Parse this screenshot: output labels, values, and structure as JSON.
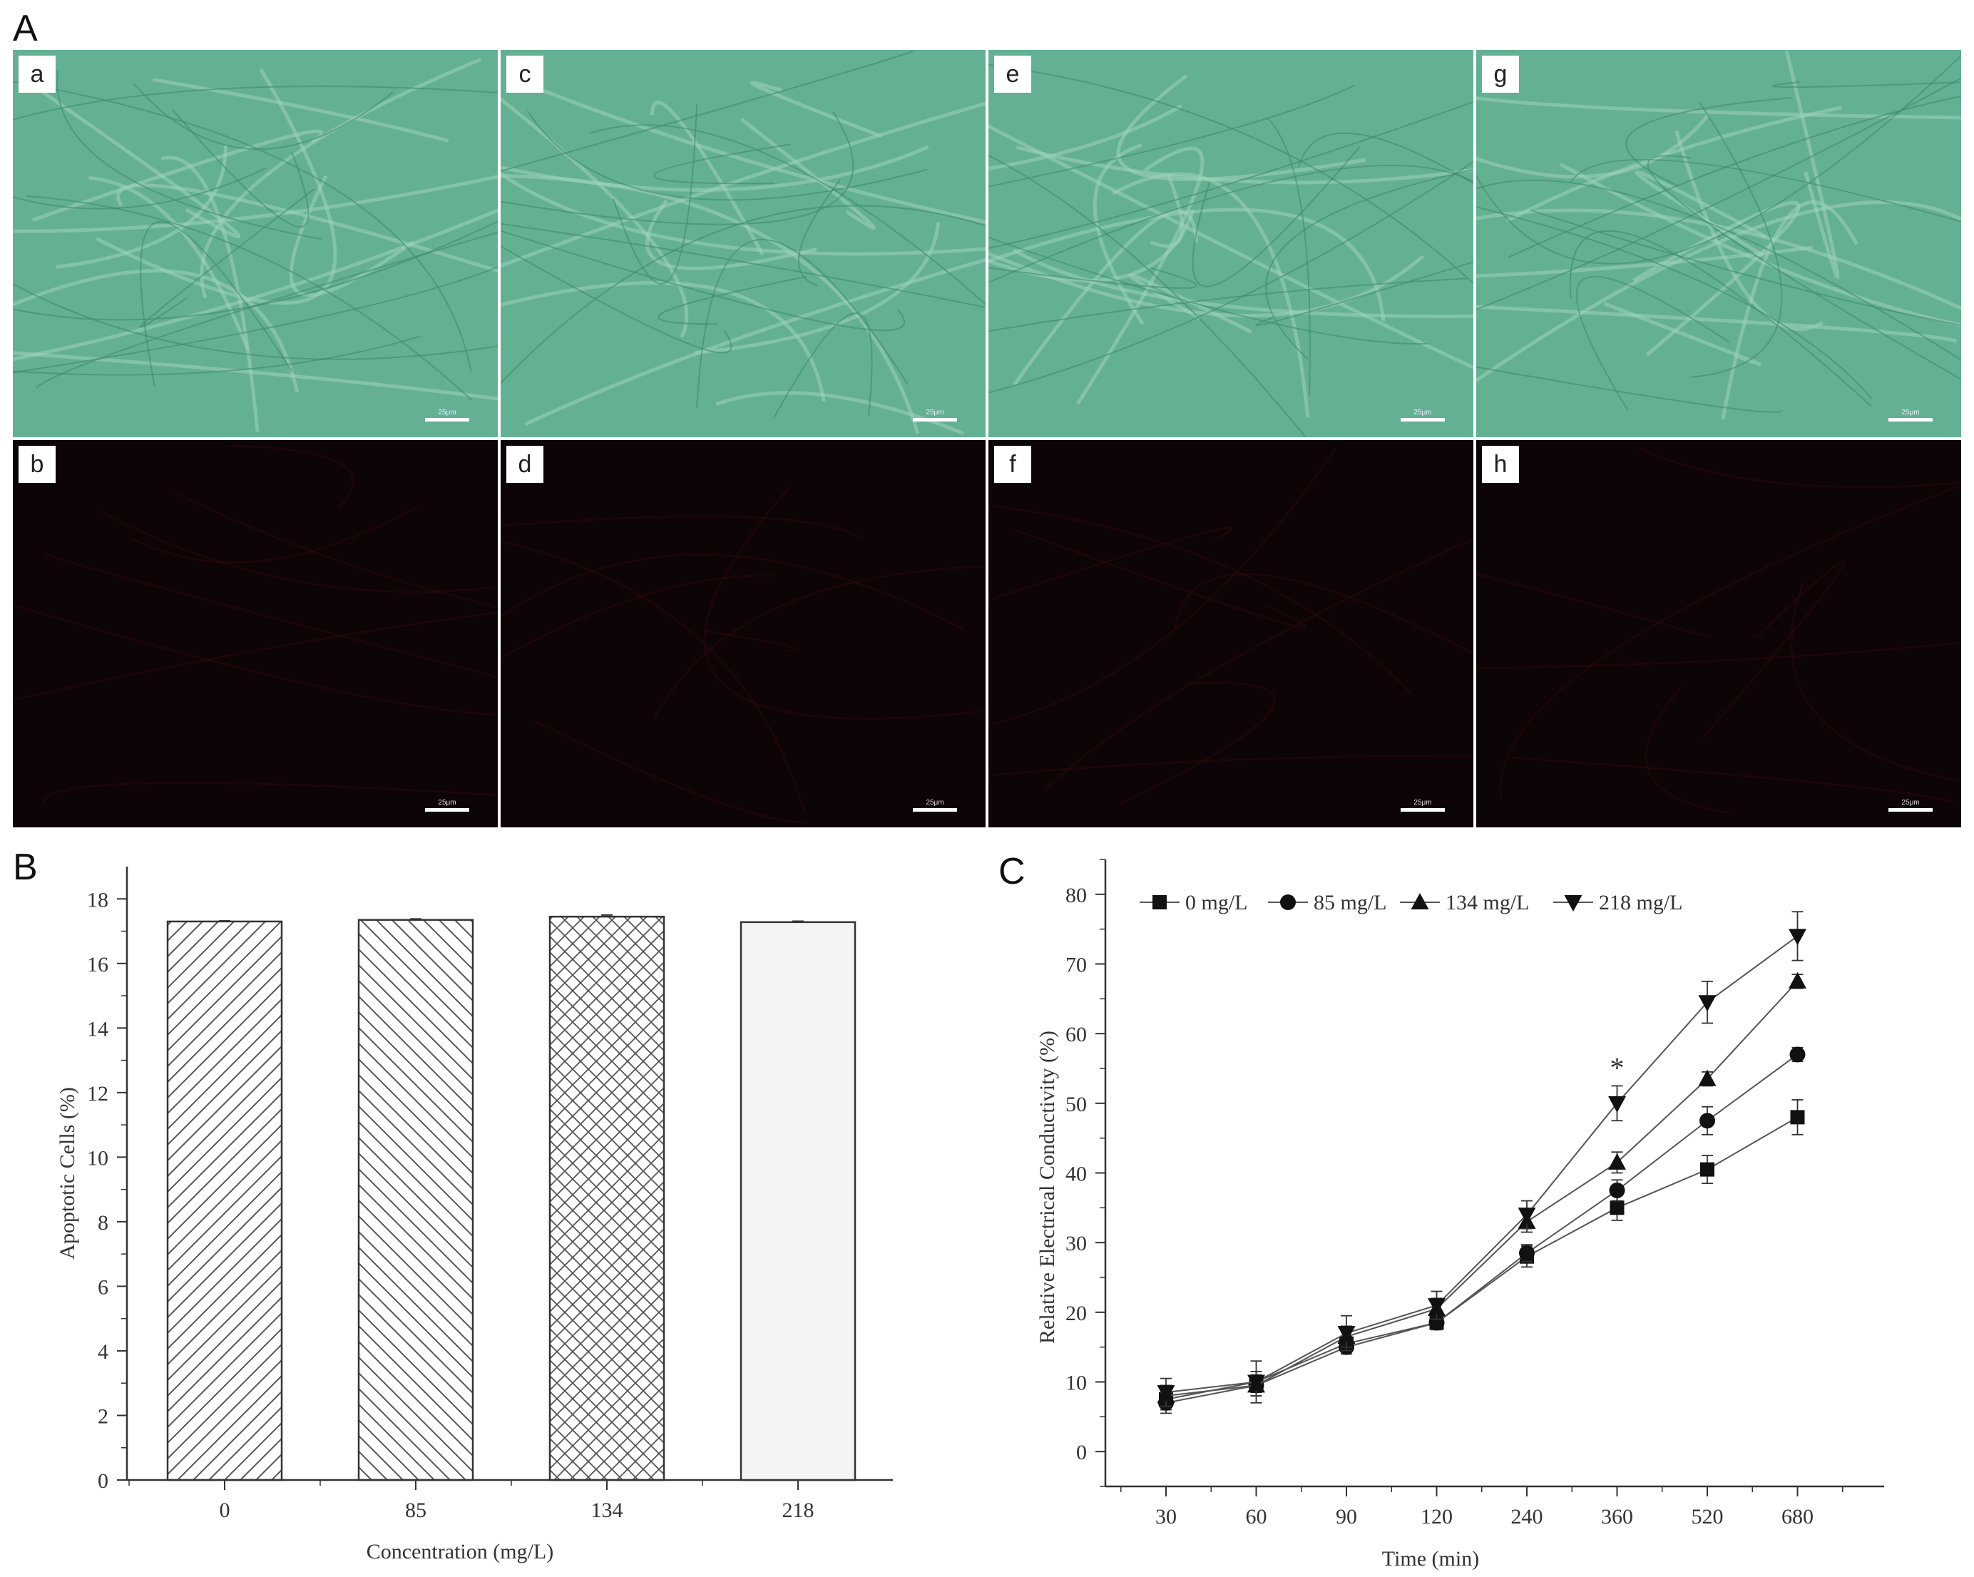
{
  "figure": {
    "label_a": "A",
    "label_b": "B",
    "label_c": "C"
  },
  "micrographs": {
    "scale_text": "25μm",
    "brightfield_color": "#64b093",
    "fluorescence_color": "#0c0406",
    "top_row": [
      "a",
      "c",
      "e",
      "g"
    ],
    "bottom_row": [
      "b",
      "d",
      "f",
      "h"
    ]
  },
  "chart_data": [
    {
      "id": "B",
      "type": "bar",
      "title": "",
      "xlabel": "Concentration (mg/L)",
      "ylabel": "Apoptotic Cells (%)",
      "categories": [
        "0",
        "85",
        "134",
        "218"
      ],
      "values": [
        17.3,
        17.35,
        17.45,
        17.28
      ],
      "errors": [
        0.02,
        0.03,
        0.05,
        0.03
      ],
      "patterns": [
        "diag-forward",
        "diag-back",
        "crosshatch",
        "solid-light"
      ],
      "ylim": [
        0,
        19
      ],
      "yticks": [
        "0",
        "2",
        "4",
        "6",
        "8",
        "10",
        "12",
        "14",
        "16",
        "18"
      ]
    },
    {
      "id": "C",
      "type": "line",
      "title": "",
      "xlabel": "Time (min)",
      "ylabel": "Relative Electrical Conductivity (%)",
      "categories": [
        "30",
        "60",
        "90",
        "120",
        "240",
        "360",
        "520",
        "680"
      ],
      "ylim": [
        -5,
        85
      ],
      "yticks": [
        "0",
        "10",
        "20",
        "30",
        "40",
        "50",
        "60",
        "70",
        "80"
      ],
      "legend_position": "top",
      "annotation": "*",
      "annotation_category": "360",
      "series": [
        {
          "name": "0 mg/L",
          "marker": "square",
          "values": [
            7.5,
            10.0,
            15.5,
            18.5,
            28.0,
            35.0,
            40.5,
            48.0
          ],
          "errors": [
            1.5,
            1.5,
            1.0,
            1.0,
            1.5,
            1.8,
            2.0,
            2.5
          ]
        },
        {
          "name": "85 mg/L",
          "marker": "circle",
          "values": [
            7.0,
            9.5,
            15.0,
            18.5,
            28.5,
            37.5,
            47.5,
            57.0
          ],
          "errors": [
            1.5,
            1.5,
            1.0,
            1.0,
            1.2,
            1.5,
            2.0,
            1.0
          ]
        },
        {
          "name": "134 mg/L",
          "marker": "triangle-up",
          "values": [
            8.0,
            9.5,
            16.5,
            20.5,
            33.0,
            41.5,
            53.5,
            67.5
          ],
          "errors": [
            1.5,
            1.5,
            1.5,
            1.5,
            1.5,
            1.5,
            1.0,
            1.0
          ]
        },
        {
          "name": "218 mg/L",
          "marker": "triangle-down",
          "values": [
            8.5,
            10.0,
            17.0,
            21.0,
            34.0,
            50.0,
            64.5,
            74.0
          ],
          "errors": [
            2.0,
            3.0,
            2.5,
            2.0,
            2.0,
            2.5,
            3.0,
            3.5
          ]
        }
      ]
    }
  ]
}
